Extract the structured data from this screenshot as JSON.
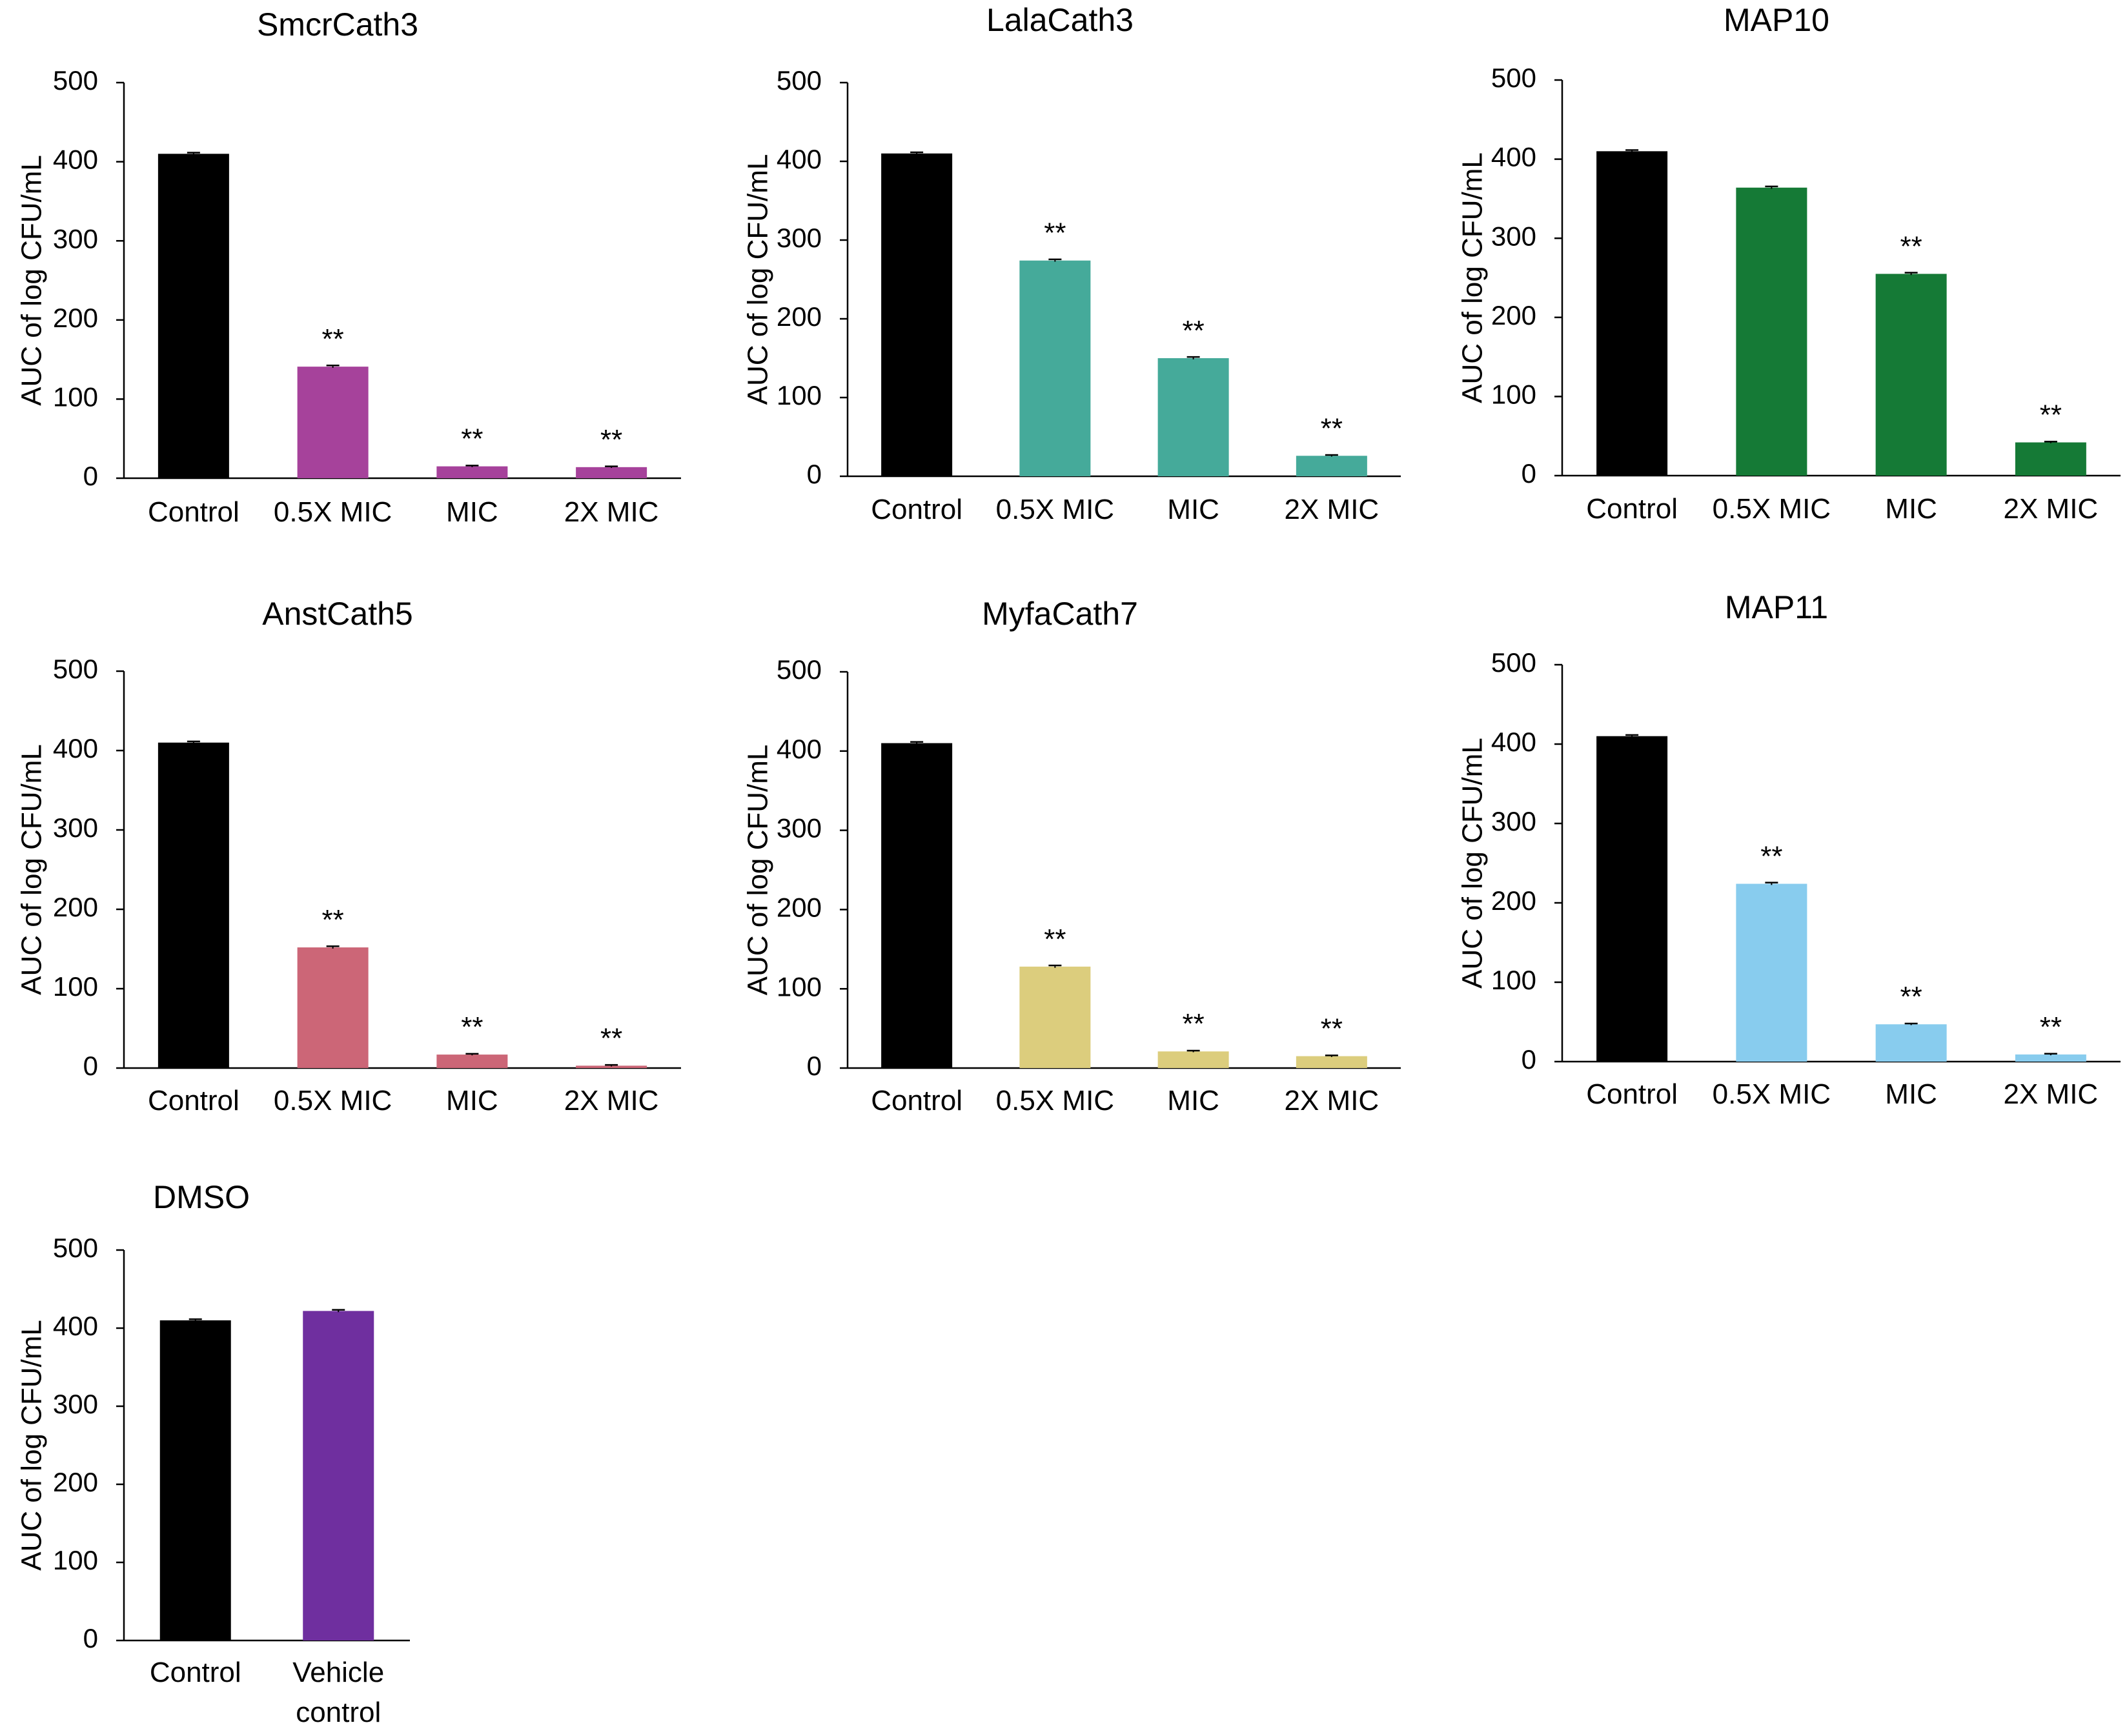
{
  "colors": {
    "control": "#000000",
    "SmcrCath3": "#A6429B",
    "LalaCath3": "#45AA9A",
    "MAP10": "#157A36",
    "AnstCath5": "#CC6677",
    "MyfaCath7": "#DCCD7D",
    "MAP11": "#88CCEE",
    "DMSO": "#6F2F9F"
  },
  "chart_data": [
    {
      "type": "bar",
      "title": "SmcrCath3",
      "xlabel": "",
      "ylabel": "AUC of log CFU/mL",
      "ylim": [
        0,
        500
      ],
      "yticks": [
        "0",
        "100",
        "200",
        "300",
        "400",
        "500"
      ],
      "categories": [
        "Control",
        "0.5X MIC",
        "MIC",
        "2X MIC"
      ],
      "values": [
        410,
        141,
        15,
        14
      ],
      "errors": [
        1.5,
        1.5,
        1,
        1
      ],
      "annotations": [
        "",
        "**",
        "**",
        "**"
      ],
      "color_key": "SmcrCath3"
    },
    {
      "type": "bar",
      "title": "LalaCath3",
      "xlabel": "",
      "ylabel": "AUC of log CFU/mL",
      "ylim": [
        0,
        500
      ],
      "yticks": [
        "0",
        "100",
        "200",
        "300",
        "400",
        "500"
      ],
      "categories": [
        "Control",
        "0.5X MIC",
        "MIC",
        "2X MIC"
      ],
      "values": [
        410,
        274,
        150,
        26
      ],
      "errors": [
        1.5,
        1.5,
        1.5,
        1
      ],
      "annotations": [
        "",
        "**",
        "**",
        "**"
      ],
      "color_key": "LalaCath3"
    },
    {
      "type": "bar",
      "title": "MAP10",
      "xlabel": "",
      "ylabel": "AUC of log CFU/mL",
      "ylim": [
        0,
        500
      ],
      "yticks": [
        "0",
        "100",
        "200",
        "300",
        "400",
        "500"
      ],
      "categories": [
        "Control",
        "0.5X MIC",
        "MIC",
        "2X MIC"
      ],
      "values": [
        410,
        364,
        255,
        42
      ],
      "errors": [
        1.5,
        1.5,
        1.5,
        1
      ],
      "annotations": [
        "",
        "",
        "**",
        "**"
      ],
      "color_key": "MAP10"
    },
    {
      "type": "bar",
      "title": "AnstCath5",
      "xlabel": "",
      "ylabel": "AUC of log CFU/mL",
      "ylim": [
        0,
        500
      ],
      "yticks": [
        "0",
        "100",
        "200",
        "300",
        "400",
        "500"
      ],
      "categories": [
        "Control",
        "0.5X MIC",
        "MIC",
        "2X MIC"
      ],
      "values": [
        410,
        152,
        17,
        3
      ],
      "errors": [
        1.5,
        1.5,
        1,
        1
      ],
      "annotations": [
        "",
        "**",
        "**",
        "**"
      ],
      "color_key": "AnstCath5"
    },
    {
      "type": "bar",
      "title": "MyfaCath7",
      "xlabel": "",
      "ylabel": "AUC of log CFU/mL",
      "ylim": [
        0,
        500
      ],
      "yticks": [
        "0",
        "100",
        "200",
        "300",
        "400",
        "500"
      ],
      "categories": [
        "Control",
        "0.5X MIC",
        "MIC",
        "2X MIC"
      ],
      "values": [
        410,
        128,
        21,
        15
      ],
      "errors": [
        1.5,
        1.5,
        1,
        1
      ],
      "annotations": [
        "",
        "**",
        "**",
        "**"
      ],
      "color_key": "MyfaCath7"
    },
    {
      "type": "bar",
      "title": "MAP11",
      "xlabel": "",
      "ylabel": "AUC of log CFU/mL",
      "ylim": [
        0,
        500
      ],
      "yticks": [
        "0",
        "100",
        "200",
        "300",
        "400",
        "500"
      ],
      "categories": [
        "Control",
        "0.5X MIC",
        "MIC",
        "2X MIC"
      ],
      "values": [
        410,
        224,
        47,
        9
      ],
      "errors": [
        1.5,
        1.5,
        1,
        1
      ],
      "annotations": [
        "",
        "**",
        "**",
        "**"
      ],
      "color_key": "MAP11"
    },
    {
      "type": "bar",
      "title": "DMSO",
      "xlabel": "",
      "ylabel": "AUC of log CFU/mL",
      "ylim": [
        0,
        500
      ],
      "yticks": [
        "0",
        "100",
        "200",
        "300",
        "400",
        "500"
      ],
      "categories": [
        "Control",
        "Vehicle\ncontrol"
      ],
      "values": [
        410,
        422
      ],
      "errors": [
        1.5,
        1.5
      ],
      "annotations": [
        "",
        ""
      ],
      "color_key": "DMSO"
    }
  ]
}
